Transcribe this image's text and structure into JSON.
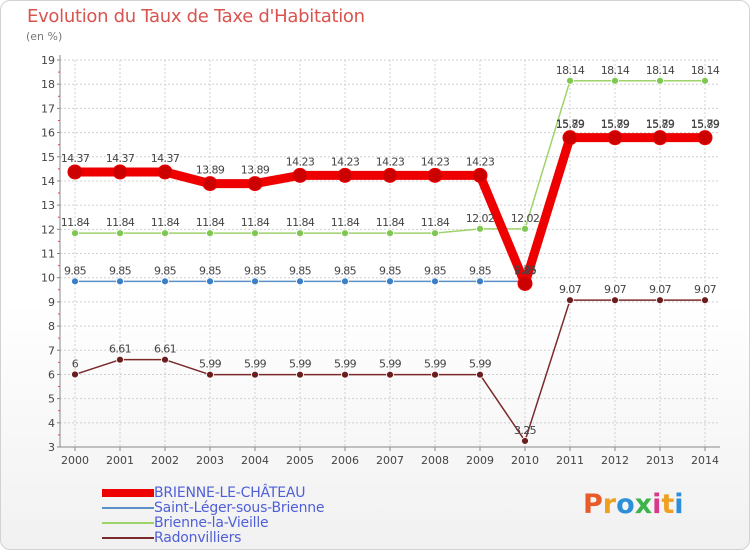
{
  "chart_data": {
    "type": "line",
    "title": "Evolution du Taux de Taxe d'Habitation",
    "unit_label": "(en %)",
    "x": [
      "2000",
      "2001",
      "2002",
      "2003",
      "2004",
      "2005",
      "2006",
      "2007",
      "2008",
      "2009",
      "2010",
      "2011",
      "2012",
      "2013",
      "2014"
    ],
    "ylim": [
      3,
      19
    ],
    "yticks": [
      3,
      4,
      5,
      6,
      7,
      8,
      9,
      10,
      11,
      12,
      13,
      14,
      15,
      16,
      17,
      18,
      19
    ],
    "series": [
      {
        "name": "BRIENNE-LE-CHÂTEAU",
        "color": "#ee0000",
        "marker_color": "#cc0000",
        "values": [
          14.37,
          14.37,
          14.37,
          13.89,
          13.89,
          14.23,
          14.23,
          14.23,
          14.23,
          14.23,
          9.76,
          15.79,
          15.79,
          15.79,
          15.79
        ],
        "labels": [
          "14.37",
          "14.37",
          "14.37",
          "13.89",
          "13.89",
          "14.23",
          "14.23",
          "14.23",
          "14.23",
          "14.23",
          "9.76",
          "15.79",
          "15.79",
          "15.79",
          "15.79"
        ]
      },
      {
        "name": "Saint-Léger-sous-Brienne",
        "color": "#5b8fc7",
        "marker_color": "#3a7fc8",
        "values": [
          9.85,
          9.85,
          9.85,
          9.85,
          9.85,
          9.85,
          9.85,
          9.85,
          9.85,
          9.85,
          9.85,
          15.89,
          15.89,
          15.89,
          15.89
        ],
        "labels": [
          "9.85",
          "9.85",
          "9.85",
          "9.85",
          "9.85",
          "9.85",
          "9.85",
          "9.85",
          "9.85",
          "9.85",
          "9.85",
          "15.89",
          "15.89",
          "15.89",
          "15.89"
        ]
      },
      {
        "name": "Brienne-la-Vieille",
        "color": "#9ed36a",
        "marker_color": "#7ec850",
        "values": [
          11.84,
          11.84,
          11.84,
          11.84,
          11.84,
          11.84,
          11.84,
          11.84,
          11.84,
          12.02,
          12.02,
          18.14,
          18.14,
          18.14,
          18.14
        ],
        "labels": [
          "11.84",
          "11.84",
          "11.84",
          "11.84",
          "11.84",
          "11.84",
          "11.84",
          "11.84",
          "11.84",
          "12.02",
          "12.02",
          "18.14",
          "18.14",
          "18.14",
          "18.14"
        ]
      },
      {
        "name": "Radonvilliers",
        "color": "#7a2a2a",
        "marker_color": "#6b1e1e",
        "values": [
          6,
          6.61,
          6.61,
          5.99,
          5.99,
          5.99,
          5.99,
          5.99,
          5.99,
          5.99,
          3.25,
          9.07,
          9.07,
          9.07,
          9.07
        ],
        "labels": [
          "6",
          "6.61",
          "6.61",
          "5.99",
          "5.99",
          "5.99",
          "5.99",
          "5.99",
          "5.99",
          "5.99",
          "3.25",
          "9.07",
          "9.07",
          "9.07",
          "9.07"
        ]
      }
    ]
  },
  "logo": {
    "letters": [
      "P",
      "r",
      "o",
      "x",
      "i",
      "t",
      "i"
    ],
    "colors": [
      "#e85a2a",
      "#f0a020",
      "#2c8fd8",
      "#3cb44a",
      "#d83a8a",
      "#f0a020",
      "#2c8fd8"
    ]
  }
}
